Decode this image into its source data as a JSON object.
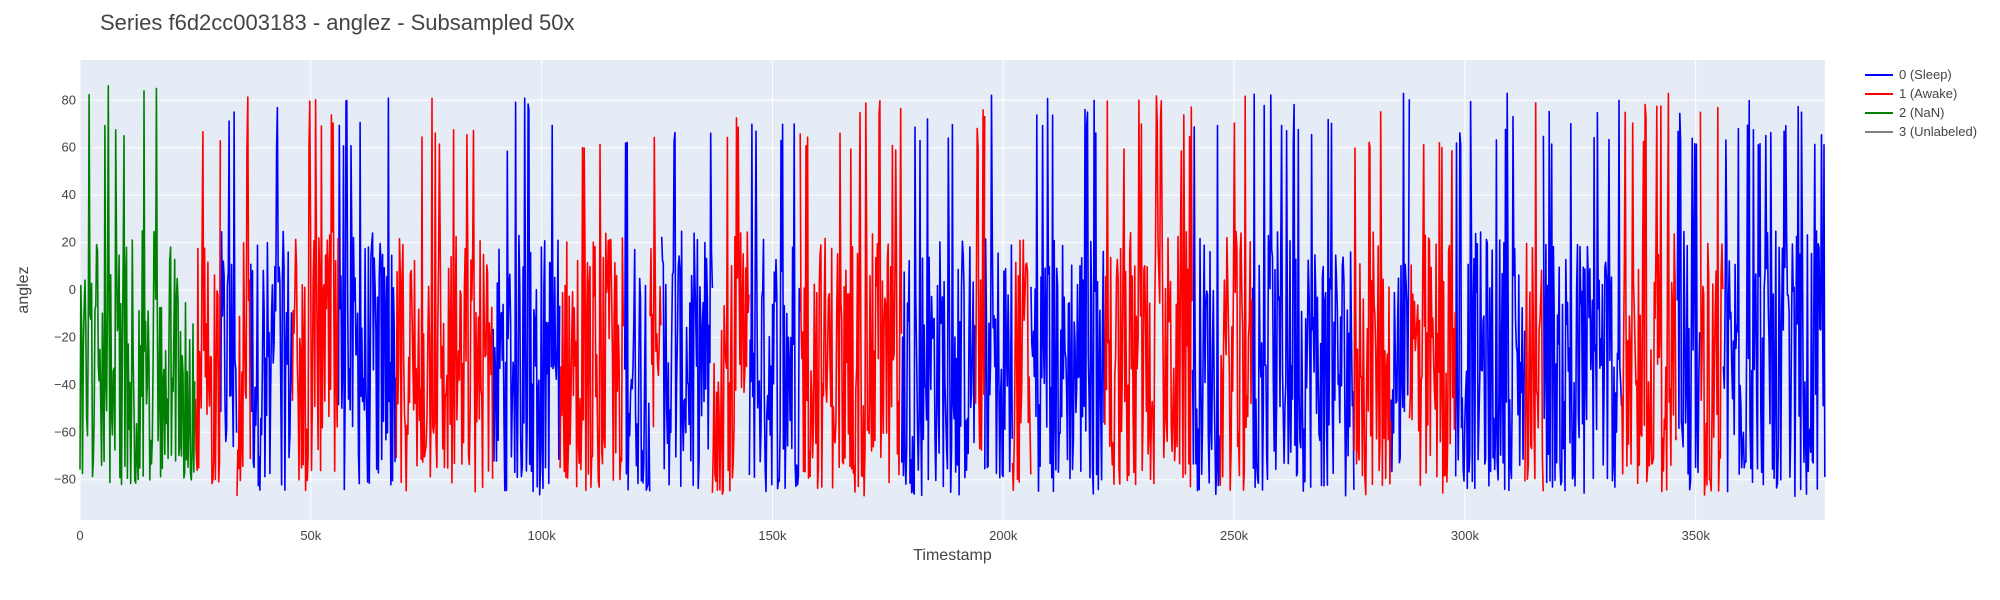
{
  "chart_data": {
    "type": "line",
    "title": "Series f6d2cc003183 - anglez - Subsampled 50x",
    "xlabel": "Timestamp",
    "ylabel": "anglez",
    "xlim": [
      0,
      378000
    ],
    "ylim": [
      -97,
      97
    ],
    "x_ticks": [
      0,
      50000,
      100000,
      150000,
      200000,
      250000,
      300000,
      350000
    ],
    "x_tick_labels": [
      "0",
      "50k",
      "100k",
      "150k",
      "200k",
      "250k",
      "300k",
      "350k"
    ],
    "y_ticks": [
      -80,
      -60,
      -40,
      -20,
      0,
      20,
      40,
      60,
      80
    ],
    "y_tick_labels": [
      "−80",
      "−60",
      "−40",
      "−20",
      "0",
      "20",
      "40",
      "60",
      "80"
    ],
    "grid": true,
    "legend_position": "right",
    "plot_background": "#e5ecf6",
    "grid_color": "#ffffff",
    "series": [
      {
        "name": "0 (Sleep)",
        "color": "#0000ff",
        "segments": [
          [
            30500,
            34000
          ],
          [
            37000,
            46000
          ],
          [
            56000,
            68500
          ],
          [
            89500,
            104000
          ],
          [
            118000,
            123500
          ],
          [
            126000,
            137000
          ],
          [
            145000,
            156000
          ],
          [
            178000,
            194000
          ],
          [
            196000,
            202000
          ],
          [
            206000,
            222000
          ],
          [
            241000,
            247000
          ],
          [
            254000,
            276000
          ],
          [
            284000,
            288000
          ],
          [
            298000,
            313000
          ],
          [
            317000,
            334000
          ],
          [
            346000,
            351000
          ],
          [
            356000,
            378000
          ]
        ],
        "amplitude": [
          -87,
          83
        ]
      },
      {
        "name": "1 (Awake)",
        "color": "#ff0000",
        "segments": [
          [
            25000,
            30500
          ],
          [
            34000,
            37000
          ],
          [
            46000,
            56000
          ],
          [
            68500,
            89500
          ],
          [
            104000,
            118000
          ],
          [
            123500,
            126000
          ],
          [
            137000,
            145000
          ],
          [
            156000,
            178000
          ],
          [
            194000,
            196000
          ],
          [
            202000,
            206000
          ],
          [
            222000,
            241000
          ],
          [
            247000,
            254000
          ],
          [
            276000,
            284000
          ],
          [
            288000,
            298000
          ],
          [
            313000,
            317000
          ],
          [
            334000,
            346000
          ],
          [
            351000,
            356000
          ]
        ],
        "amplitude": [
          -87,
          83
        ]
      },
      {
        "name": "2 (NaN)",
        "color": "#008000",
        "segments": [
          [
            0,
            25000
          ]
        ],
        "amplitude": [
          -82,
          88
        ]
      },
      {
        "name": "3 (Unlabeled)",
        "color": "#808080",
        "segments": []
      }
    ]
  }
}
